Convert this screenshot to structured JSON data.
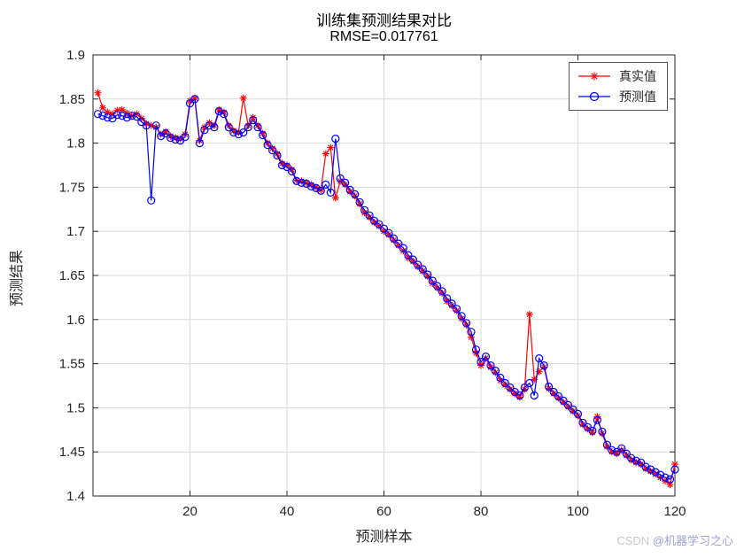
{
  "watermark": {
    "prefix": "CSDN",
    "handle": "@机器学习之心",
    "prefix_color": "#c6c6c6",
    "handle_color": "#9f9fd4"
  },
  "chart_data": {
    "type": "line",
    "title": "训练集预测结果对比",
    "subtitle": "RMSE=0.017761",
    "xlabel": "预测样本",
    "ylabel": "预测结果",
    "xlim": [
      0,
      120
    ],
    "ylim": [
      1.4,
      1.9
    ],
    "xticks": [
      20,
      40,
      60,
      80,
      100,
      120
    ],
    "ytick_labels": [
      "1.4",
      "1.45",
      "1.5",
      "1.55",
      "1.6",
      "1.65",
      "1.7",
      "1.75",
      "1.8",
      "1.85",
      "1.9"
    ],
    "grid": true,
    "legend_position": "top-right-inside",
    "x_start": 1,
    "x_step": 1,
    "series": [
      {
        "name": "真实值",
        "color": "#ff0000",
        "marker": "asterisk",
        "values": [
          1.857,
          1.84,
          1.835,
          1.833,
          1.837,
          1.838,
          1.834,
          1.831,
          1.833,
          1.828,
          1.822,
          1.82,
          1.818,
          1.81,
          1.813,
          1.808,
          1.806,
          1.805,
          1.81,
          1.848,
          1.851,
          1.803,
          1.818,
          1.823,
          1.82,
          1.838,
          1.835,
          1.82,
          1.814,
          1.812,
          1.851,
          1.82,
          1.829,
          1.82,
          1.811,
          1.8,
          1.794,
          1.788,
          1.777,
          1.775,
          1.77,
          1.758,
          1.757,
          1.755,
          1.753,
          1.75,
          1.747,
          1.788,
          1.795,
          1.738,
          1.757,
          1.753,
          1.745,
          1.74,
          1.731,
          1.721,
          1.716,
          1.71,
          1.706,
          1.7,
          1.696,
          1.69,
          1.684,
          1.678,
          1.67,
          1.666,
          1.66,
          1.655,
          1.649,
          1.641,
          1.636,
          1.63,
          1.621,
          1.616,
          1.61,
          1.601,
          1.594,
          1.58,
          1.562,
          1.548,
          1.556,
          1.546,
          1.54,
          1.531,
          1.526,
          1.521,
          1.516,
          1.512,
          1.521,
          1.606,
          1.532,
          1.541,
          1.546,
          1.522,
          1.516,
          1.511,
          1.506,
          1.501,
          1.496,
          1.491,
          1.481,
          1.476,
          1.472,
          1.49,
          1.471,
          1.456,
          1.45,
          1.448,
          1.452,
          1.446,
          1.441,
          1.438,
          1.436,
          1.431,
          1.428,
          1.425,
          1.421,
          1.417,
          1.413,
          1.436
        ]
      },
      {
        "name": "预测值",
        "color": "#0000ff",
        "marker": "circle",
        "values": [
          1.833,
          1.831,
          1.829,
          1.828,
          1.832,
          1.831,
          1.829,
          1.831,
          1.83,
          1.824,
          1.82,
          1.735,
          1.82,
          1.808,
          1.811,
          1.806,
          1.804,
          1.803,
          1.807,
          1.845,
          1.85,
          1.8,
          1.815,
          1.82,
          1.818,
          1.836,
          1.833,
          1.818,
          1.812,
          1.81,
          1.812,
          1.818,
          1.826,
          1.818,
          1.809,
          1.798,
          1.792,
          1.786,
          1.775,
          1.773,
          1.768,
          1.757,
          1.755,
          1.754,
          1.751,
          1.749,
          1.746,
          1.753,
          1.744,
          1.805,
          1.76,
          1.755,
          1.747,
          1.742,
          1.733,
          1.724,
          1.718,
          1.712,
          1.708,
          1.703,
          1.698,
          1.692,
          1.686,
          1.681,
          1.673,
          1.668,
          1.662,
          1.657,
          1.651,
          1.644,
          1.638,
          1.632,
          1.624,
          1.618,
          1.612,
          1.604,
          1.596,
          1.586,
          1.566,
          1.552,
          1.558,
          1.548,
          1.542,
          1.534,
          1.528,
          1.523,
          1.518,
          1.514,
          1.523,
          1.528,
          1.514,
          1.556,
          1.548,
          1.524,
          1.518,
          1.513,
          1.508,
          1.503,
          1.498,
          1.493,
          1.483,
          1.478,
          1.474,
          1.486,
          1.473,
          1.458,
          1.452,
          1.45,
          1.454,
          1.448,
          1.443,
          1.44,
          1.438,
          1.433,
          1.43,
          1.427,
          1.424,
          1.421,
          1.419,
          1.43
        ]
      }
    ]
  }
}
